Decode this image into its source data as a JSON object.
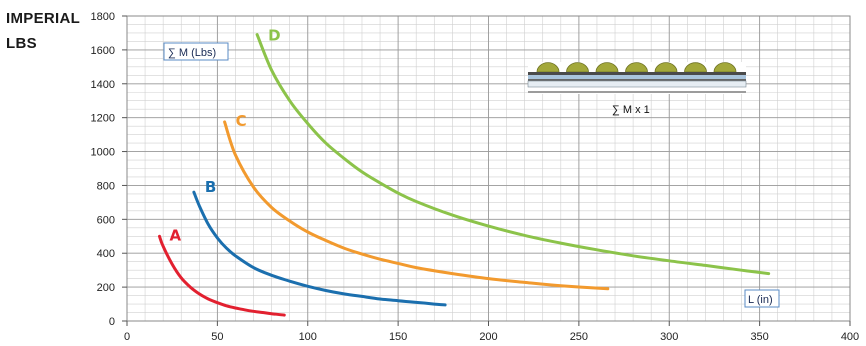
{
  "unit_system": "IMPERIAL",
  "unit": "LBS",
  "colors": {
    "A": "#e2202f",
    "B": "#1b6fae",
    "C": "#f29a2e",
    "D": "#8cc34a",
    "grid_major": "#9a9a9a",
    "grid_minor": "#d0d0d0",
    "label_box_border": "#5a8bc4"
  },
  "inset": {
    "formula": "∑ M x 1",
    "rollers": 7
  },
  "chart_data": {
    "type": "line",
    "xlabel": "L (in)",
    "ylabel": "∑ M (Lbs)",
    "xlim": [
      0,
      400
    ],
    "ylim": [
      0,
      1800
    ],
    "x_ticks": [
      0,
      50,
      100,
      150,
      200,
      250,
      300,
      350,
      400
    ],
    "y_ticks": [
      0,
      200,
      400,
      600,
      800,
      1000,
      1200,
      1400,
      1600,
      1800
    ],
    "grid": true,
    "series": [
      {
        "name": "A",
        "x": [
          18,
          20,
          25,
          30,
          35,
          40,
          45,
          50,
          55,
          60,
          65,
          70,
          75,
          80,
          87
        ],
        "y": [
          500,
          440,
          335,
          255,
          200,
          160,
          130,
          108,
          90,
          77,
          66,
          57,
          50,
          43,
          35
        ]
      },
      {
        "name": "B",
        "x": [
          37,
          40,
          45,
          50,
          55,
          60,
          70,
          80,
          90,
          100,
          110,
          120,
          130,
          140,
          150,
          160,
          170,
          176
        ],
        "y": [
          760,
          680,
          570,
          490,
          430,
          385,
          315,
          270,
          235,
          205,
          180,
          160,
          145,
          130,
          120,
          110,
          100,
          95
        ]
      },
      {
        "name": "C",
        "x": [
          54,
          60,
          70,
          80,
          90,
          100,
          110,
          120,
          130,
          140,
          150,
          160,
          180,
          200,
          220,
          240,
          266
        ],
        "y": [
          1175,
          980,
          790,
          670,
          590,
          525,
          475,
          430,
          395,
          365,
          340,
          315,
          280,
          250,
          228,
          208,
          190
        ]
      },
      {
        "name": "D",
        "x": [
          72,
          80,
          90,
          100,
          110,
          120,
          130,
          140,
          150,
          160,
          180,
          200,
          220,
          240,
          260,
          280,
          300,
          320,
          340,
          355
        ],
        "y": [
          1690,
          1480,
          1300,
          1165,
          1050,
          960,
          880,
          815,
          755,
          705,
          625,
          560,
          505,
          460,
          420,
          385,
          355,
          328,
          300,
          280
        ]
      }
    ]
  }
}
